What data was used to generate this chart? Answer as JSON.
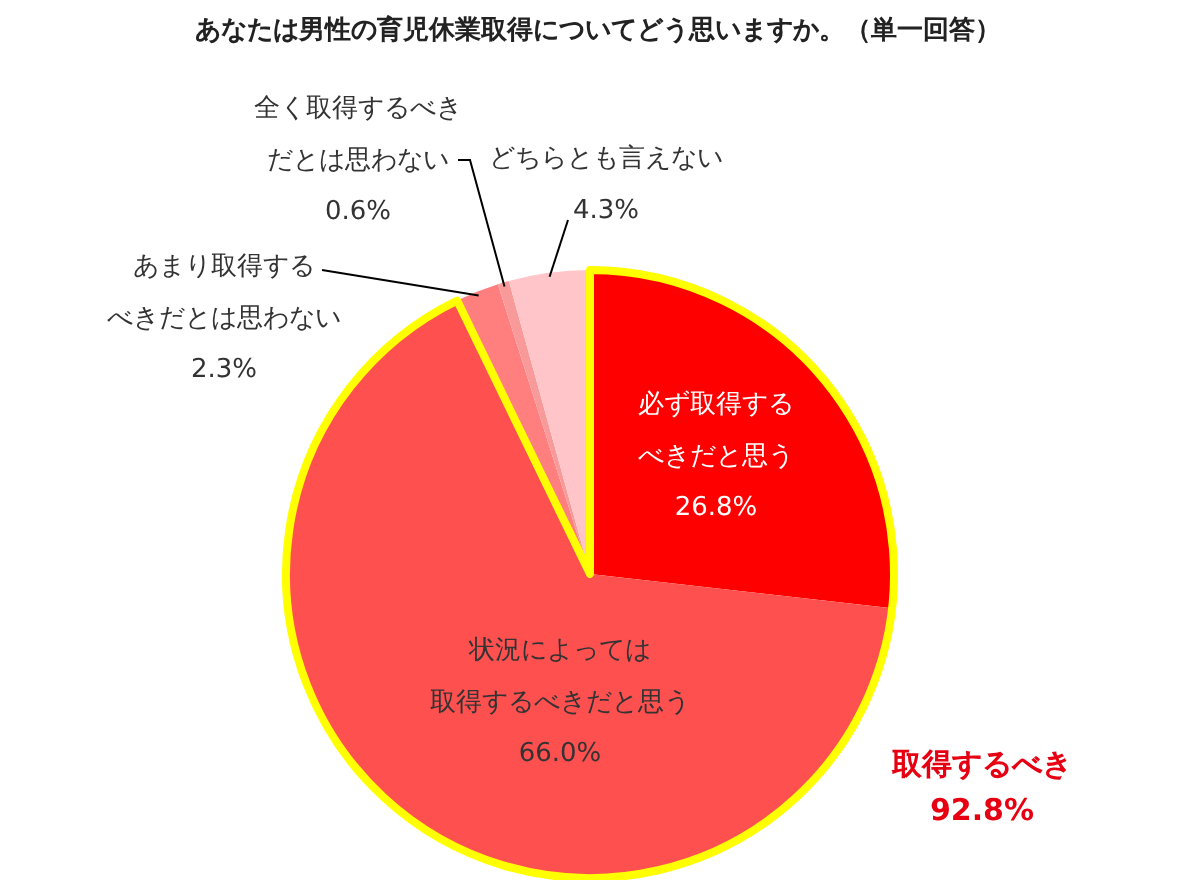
{
  "chart_data": {
    "type": "pie",
    "title": "あなたは男性の育児休業取得についてどう思いますか。（単一回答）",
    "categories": [
      "必ず取得するべきだと思う",
      "状況によっては取得するべきだと思う",
      "あまり取得するべきだとは思わない",
      "全く取得するべきだとは思わない",
      "どちらとも言えない"
    ],
    "values": [
      26.8,
      66.0,
      2.3,
      0.6,
      4.3
    ],
    "colors": [
      "#ff0000",
      "#ff5050",
      "#ff7f7f",
      "#f99a9a",
      "#ffc5c8"
    ],
    "value_labels": [
      "26.8%",
      "66.0%",
      "2.3%",
      "0.6%",
      "4.3%"
    ],
    "annotations": [
      "取得するべき\n92.8%"
    ]
  }
}
